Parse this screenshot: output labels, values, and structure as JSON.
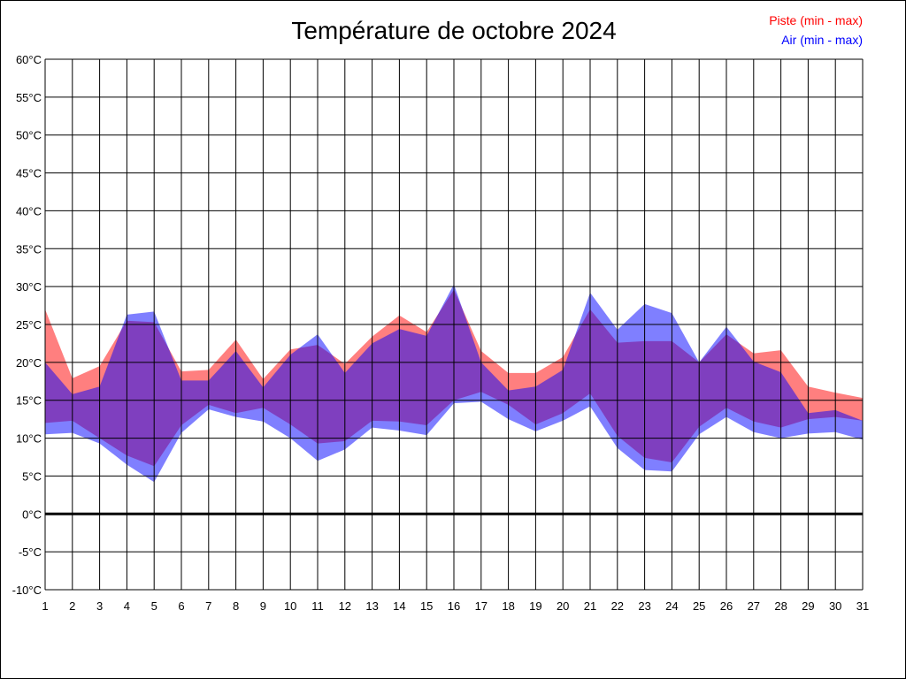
{
  "chart_data": {
    "type": "area",
    "title": "Température de octobre 2024",
    "xlabel": "",
    "ylabel": "",
    "x": [
      1,
      2,
      3,
      4,
      5,
      6,
      7,
      8,
      9,
      10,
      11,
      12,
      13,
      14,
      15,
      16,
      17,
      18,
      19,
      20,
      21,
      22,
      23,
      24,
      25,
      26,
      27,
      28,
      29,
      30,
      31
    ],
    "ylim": [
      -10,
      60
    ],
    "y_ticks": [
      "60°C",
      "55°C",
      "50°C",
      "45°C",
      "40°C",
      "35°C",
      "30°C",
      "25°C",
      "20°C",
      "15°C",
      "10°C",
      "5°C",
      "0°C",
      "-5°C",
      "-10°C"
    ],
    "y_tick_values": [
      60,
      55,
      50,
      45,
      40,
      35,
      30,
      25,
      20,
      15,
      10,
      5,
      0,
      -5,
      -10
    ],
    "grid": true,
    "legend_placement": "top-right",
    "series": [
      {
        "name": "Piste (min - max)",
        "color": "#ff0000",
        "min": [
          12,
          12.3,
          10,
          7.7,
          6.3,
          11.7,
          14.4,
          13.3,
          14,
          11.8,
          9.3,
          9.6,
          12.3,
          12.2,
          11.7,
          15,
          16.1,
          14.4,
          11.8,
          13.3,
          15.9,
          10.3,
          7.4,
          6.8,
          11.5,
          14,
          12.2,
          11.4,
          12.5,
          12.8,
          12.3
        ],
        "max": [
          27,
          17.9,
          19.5,
          25.5,
          25.3,
          18.8,
          19,
          23,
          17.8,
          21.7,
          22.3,
          19.8,
          23.4,
          26.2,
          24,
          29.6,
          21.5,
          18.6,
          18.6,
          20.7,
          27,
          22.6,
          22.8,
          22.8,
          20,
          23.7,
          21.2,
          21.6,
          16.8,
          16,
          15.3
        ]
      },
      {
        "name": "Air (min - max)",
        "color": "#0000ff",
        "min": [
          10.5,
          10.7,
          9.3,
          6.5,
          4.2,
          10.7,
          13.8,
          12.8,
          12.2,
          10,
          7,
          8.5,
          11.4,
          11,
          10.4,
          14.6,
          14.8,
          12.5,
          10.9,
          12.3,
          14.2,
          8.7,
          5.8,
          5.6,
          10.5,
          12.8,
          10.8,
          10,
          10.6,
          10.8,
          9.8
        ],
        "max": [
          20,
          15.8,
          16.8,
          26.3,
          26.7,
          17.6,
          17.6,
          21.5,
          16.7,
          21,
          23.7,
          18.6,
          22.5,
          24.4,
          23.5,
          30.3,
          20,
          16.3,
          16.8,
          19,
          29.2,
          24.3,
          27.7,
          26.5,
          20,
          24.7,
          20.1,
          18.7,
          13.3,
          13.7,
          12.3
        ]
      }
    ]
  }
}
